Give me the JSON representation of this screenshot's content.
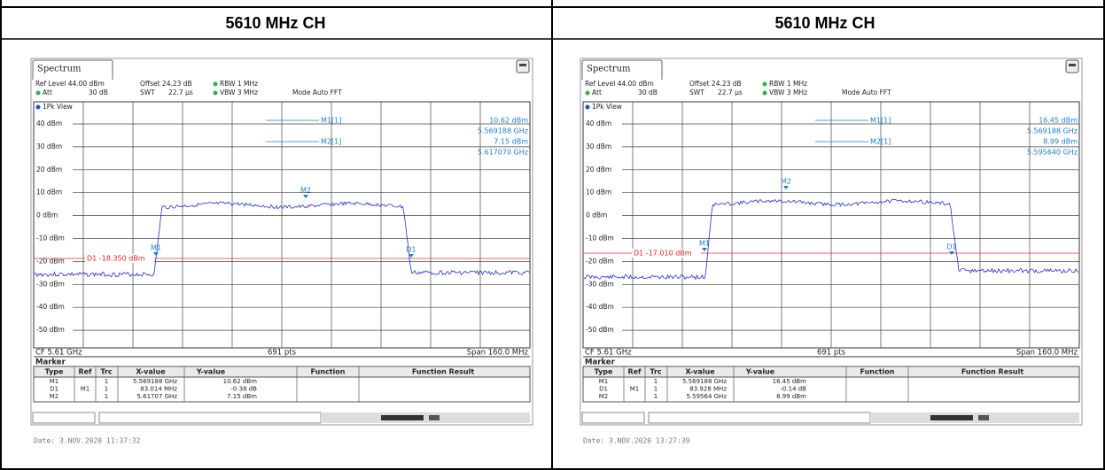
{
  "panels": [
    {
      "header": "5610 MHz CH",
      "tab": "Spectrum",
      "settings": [
        "Ref Level 44.00 dBm",
        "Offset 24.23 dB",
        "RBW 1 MHz",
        "Att",
        "30 dB",
        "SWT",
        "22.7 µs",
        "VBW 3 MHz",
        "Mode Auto FFT"
      ],
      "view": "1Pk View",
      "y_labels": [
        "40 dBm",
        "30 dBm",
        "20 dBm",
        "10 dBm",
        "0 dBm",
        "-10 dBm",
        "-20 dBm",
        "-30 dBm",
        "-40 dBm",
        "-50 dBm"
      ],
      "readouts": [
        {
          "marker": "M1[1]",
          "level": "10.62 dBm",
          "frequency": "5.569188 GHz"
        },
        {
          "marker": "M2[1]",
          "level": "7.15 dBm",
          "frequency": "5.617070 GHz"
        }
      ],
      "display_line": "D1 -18.350 dBm",
      "markers": [
        "M1",
        "M2",
        "D1"
      ],
      "footer": {
        "center": "CF 5.61 GHz",
        "points": "691 pts",
        "span": "Span 160.0 MHz"
      },
      "marker_table": {
        "title": "Marker",
        "columns": [
          "Type",
          "Ref",
          "Trc",
          "X-value",
          "Y-value",
          "Function",
          "Function Result"
        ],
        "rows": [
          {
            "type": "M1",
            "trc": "1",
            "x": "5.569188 GHz",
            "y": "10.62 dBm"
          },
          {
            "type": "D1",
            "ref": "M1",
            "trc": "1",
            "x": "83.014 MHz",
            "y": "-0.38 dB"
          },
          {
            "type": "M2",
            "trc": "1",
            "x": "5.61707 GHz",
            "y": "7.15 dBm"
          }
        ]
      },
      "date": "Date: 3.NOV.2020 11:37:32"
    },
    {
      "header": "5610 MHz CH",
      "tab": "Spectrum",
      "settings": [
        "Ref Level 44.00 dBm",
        "Offset 24.23 dB",
        "RBW 1 MHz",
        "Att",
        "30 dB",
        "SWT",
        "22.7 µs",
        "VBW 3 MHz",
        "Mode Auto FFT"
      ],
      "view": "1Pk View",
      "y_labels": [
        "40 dBm",
        "30 dBm",
        "20 dBm",
        "10 dBm",
        "0 dBm",
        "-10 dBm",
        "-20 dBm",
        "-30 dBm",
        "-40 dBm",
        "-50 dBm"
      ],
      "readouts": [
        {
          "marker": "M1[1]",
          "level": "16.45 dBm",
          "frequency": "5.569188 GHz"
        },
        {
          "marker": "M2[1]",
          "level": "8.99 dBm",
          "frequency": "5.595640 GHz"
        }
      ],
      "display_line": "D1 -17.010 dBm",
      "markers": [
        "M1",
        "M2",
        "D1"
      ],
      "footer": {
        "center": "CF 5.61 GHz",
        "points": "691 pts",
        "span": "Span 160.0 MHz"
      },
      "marker_table": {
        "title": "Marker",
        "columns": [
          "Type",
          "Ref",
          "Trc",
          "X-value",
          "Y-value",
          "Function",
          "Function Result"
        ],
        "rows": [
          {
            "type": "M1",
            "trc": "1",
            "x": "5.569188 GHz",
            "y": "16.45 dBm"
          },
          {
            "type": "D1",
            "ref": "M1",
            "trc": "1",
            "x": "83.928 MHz",
            "y": "-0.14 dB"
          },
          {
            "type": "M2",
            "trc": "1",
            "x": "5.59564 GHz",
            "y": "8.99 dBm"
          }
        ]
      },
      "date": "Date: 3.NOV.2020 13:27:39"
    }
  ]
}
